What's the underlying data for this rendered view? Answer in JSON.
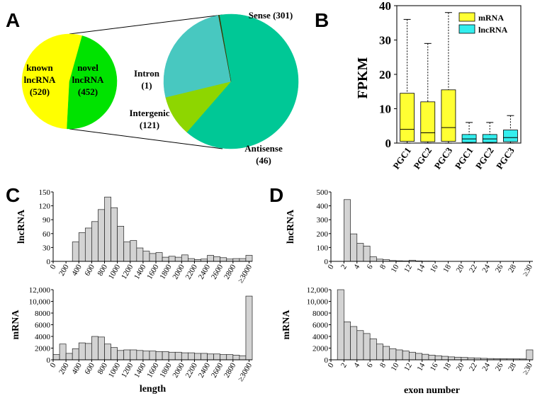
{
  "panels": {
    "A": "A",
    "B": "B",
    "C": "C",
    "D": "D"
  },
  "colors": {
    "known": "#ffff00",
    "novel": "#00e300",
    "sense": "#00c896",
    "antisense": "#8ed600",
    "intergenic": "#48c8c0",
    "intron": "#3a3a00",
    "mrna_box": "#ffff33",
    "lncrna_box": "#33eeee",
    "hist_bar": "#d3d3d3"
  },
  "chart_data": [
    {
      "id": "A-left",
      "type": "pie",
      "slices": [
        {
          "key": "known",
          "label_lines": [
            "known",
            "lncRNA",
            "(520)"
          ],
          "value": 520
        },
        {
          "key": "novel",
          "label_lines": [
            "novel",
            "lncRNA",
            "(452)"
          ],
          "value": 452
        }
      ]
    },
    {
      "id": "A-right",
      "type": "pie",
      "slices": [
        {
          "key": "sense",
          "label_lines": [
            "Sense (301)"
          ],
          "value": 301
        },
        {
          "key": "antisense",
          "label_lines": [
            "Antisense",
            "(46)"
          ],
          "value": 46
        },
        {
          "key": "intergenic",
          "label_lines": [
            "Intergenic",
            "(121)"
          ],
          "value": 121
        },
        {
          "key": "intron",
          "label_lines": [
            "Intron",
            "(1)"
          ],
          "value": 1
        }
      ]
    },
    {
      "id": "B",
      "type": "box",
      "ylabel": "FPKM",
      "ylim": [
        0,
        40
      ],
      "yticks": [
        0,
        10,
        20,
        30,
        40
      ],
      "legend": [
        {
          "label": "mRNA",
          "color_key": "mrna_box"
        },
        {
          "label": "lncRNA",
          "color_key": "lncrna_box"
        }
      ],
      "groups": [
        {
          "label": "PGC1",
          "type": "mRNA",
          "min": 0,
          "q1": 0.5,
          "median": 4,
          "q3": 14.5,
          "max": 36
        },
        {
          "label": "PGC2",
          "type": "mRNA",
          "min": 0,
          "q1": 0.4,
          "median": 3,
          "q3": 12,
          "max": 29
        },
        {
          "label": "PGC3",
          "type": "mRNA",
          "min": 0,
          "q1": 0.5,
          "median": 4.5,
          "q3": 15.5,
          "max": 38
        },
        {
          "label": "PGC1",
          "type": "lncRNA",
          "min": 0,
          "q1": 0.2,
          "median": 1.2,
          "q3": 2.5,
          "max": 6
        },
        {
          "label": "PGC2",
          "type": "lncRNA",
          "min": 0,
          "q1": 0.2,
          "median": 1.2,
          "q3": 2.5,
          "max": 6
        },
        {
          "label": "PGC3",
          "type": "lncRNA",
          "min": 0,
          "q1": 0.4,
          "median": 1.6,
          "q3": 3.8,
          "max": 8
        }
      ]
    },
    {
      "id": "C-top",
      "type": "bar",
      "ylabel": "lncRNA",
      "ylim": [
        0,
        150
      ],
      "yticks": [
        "0",
        "30",
        "60",
        "90",
        "120",
        "150"
      ],
      "ytick_values": [
        0,
        30,
        60,
        90,
        120,
        150
      ],
      "xticks": [
        "0",
        "200",
        "400",
        "600",
        "800",
        "1000",
        "1200",
        "1400",
        "1600",
        "1800",
        "2000",
        "2200",
        "2400",
        "2600",
        "2800",
        "≥3000"
      ],
      "values": [
        0,
        0,
        0,
        42,
        62,
        72,
        86,
        112,
        139,
        116,
        76,
        42,
        45,
        29,
        22,
        17,
        19,
        9,
        11,
        9,
        14,
        6,
        4,
        5,
        13,
        10,
        8,
        5,
        6,
        6,
        13
      ]
    },
    {
      "id": "C-bottom",
      "type": "bar",
      "ylabel": "mRNA",
      "xlabel": "length",
      "ylim": [
        0,
        12000
      ],
      "yticks": [
        "0",
        "2000",
        "4000",
        "6000",
        "8000",
        "10,000",
        "12,000"
      ],
      "ytick_values": [
        0,
        2000,
        4000,
        6000,
        8000,
        10000,
        12000
      ],
      "xticks": [
        "0",
        "200",
        "400",
        "600",
        "800",
        "1000",
        "1200",
        "1400",
        "1600",
        "1800",
        "2000",
        "2200",
        "2400",
        "2600",
        "2800",
        "≥3000"
      ],
      "values": [
        900,
        2700,
        1100,
        1900,
        2900,
        2800,
        4000,
        3900,
        2700,
        2100,
        1600,
        1700,
        1700,
        1600,
        1500,
        1500,
        1400,
        1400,
        1300,
        1300,
        1200,
        1200,
        1100,
        1100,
        1000,
        1000,
        900,
        900,
        800,
        700,
        10900
      ]
    },
    {
      "id": "D-top",
      "type": "bar",
      "ylabel": "lncRNA",
      "ylim": [
        0,
        500
      ],
      "yticks": [
        "0",
        "100",
        "200",
        "300",
        "400",
        "500"
      ],
      "ytick_values": [
        0,
        100,
        200,
        300,
        400,
        500
      ],
      "xticks": [
        "0",
        "2",
        "4",
        "6",
        "8",
        "10",
        "12",
        "14",
        "16",
        "18",
        "20",
        "22",
        "24",
        "26",
        "28",
        "≥30"
      ],
      "values": [
        0,
        0,
        445,
        198,
        130,
        110,
        33,
        16,
        12,
        6,
        4,
        3,
        8,
        3,
        2,
        2,
        0,
        0,
        0,
        0,
        0,
        0,
        0,
        0,
        0,
        0,
        0,
        0,
        0,
        0,
        0
      ]
    },
    {
      "id": "D-bottom",
      "type": "bar",
      "ylabel": "mRNA",
      "xlabel": "exon number",
      "ylim": [
        0,
        12000
      ],
      "yticks": [
        "0",
        "2000",
        "4000",
        "6000",
        "8000",
        "10,000",
        "12,000"
      ],
      "ytick_values": [
        0,
        2000,
        4000,
        6000,
        8000,
        10000,
        12000
      ],
      "xticks": [
        "0",
        "2",
        "4",
        "6",
        "8",
        "10",
        "12",
        "14",
        "16",
        "18",
        "20",
        "22",
        "24",
        "26",
        "28",
        "≥30"
      ],
      "values": [
        0,
        12000,
        6500,
        5700,
        5000,
        4500,
        3600,
        2700,
        2300,
        1900,
        1700,
        1500,
        1300,
        1100,
        950,
        800,
        700,
        600,
        500,
        450,
        400,
        350,
        300,
        250,
        220,
        200,
        180,
        170,
        160,
        150,
        1700
      ]
    }
  ]
}
